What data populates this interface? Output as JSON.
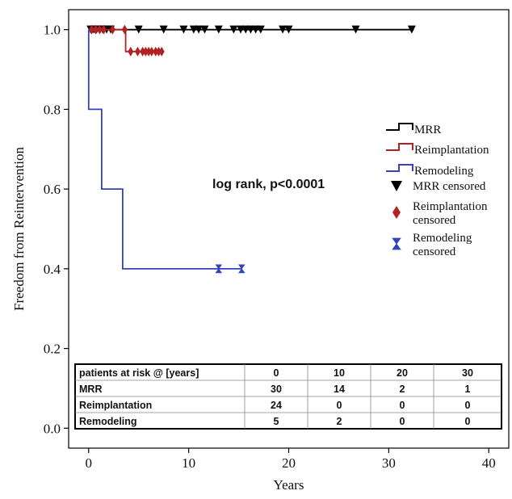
{
  "chart_data": {
    "type": "line",
    "subtype": "kaplan-meier-step",
    "title": "",
    "xlabel": "Years",
    "ylabel": "Freedom from Reintervention",
    "xlim": [
      -2,
      42
    ],
    "ylim": [
      -0.05,
      1.05
    ],
    "x_ticks": [
      0,
      10,
      20,
      30,
      40
    ],
    "y_ticks": [
      0.0,
      0.2,
      0.4,
      0.6,
      0.8,
      1.0
    ],
    "x_tick_labels": [
      "0",
      "10",
      "20",
      "30",
      "40"
    ],
    "y_tick_labels": [
      "0.0",
      "0.2",
      "0.4",
      "0.6",
      "0.8",
      "1.0"
    ],
    "grid": false,
    "legend_position": "right",
    "annotation": "log rank, p<0.0001",
    "series": [
      {
        "name": "MRR",
        "color": "#000000",
        "censor_marker": "triangle-down",
        "steps": [
          [
            0,
            1.0
          ],
          [
            32.5,
            1.0
          ]
        ],
        "censored": [
          [
            0.2,
            1.0
          ],
          [
            0.5,
            1.0
          ],
          [
            0.8,
            1.0
          ],
          [
            1.1,
            1.0
          ],
          [
            1.4,
            1.0
          ],
          [
            1.8,
            1.0
          ],
          [
            2.2,
            1.0
          ],
          [
            5.0,
            1.0
          ],
          [
            7.5,
            1.0
          ],
          [
            9.5,
            1.0
          ],
          [
            10.5,
            1.0
          ],
          [
            11.0,
            1.0
          ],
          [
            11.6,
            1.0
          ],
          [
            13.0,
            1.0
          ],
          [
            14.5,
            1.0
          ],
          [
            15.2,
            1.0
          ],
          [
            15.7,
            1.0
          ],
          [
            16.2,
            1.0
          ],
          [
            16.7,
            1.0
          ],
          [
            17.2,
            1.0
          ],
          [
            19.4,
            1.0
          ],
          [
            20.0,
            1.0
          ],
          [
            26.7,
            1.0
          ],
          [
            32.3,
            1.0
          ]
        ]
      },
      {
        "name": "Reimplantation",
        "color": "#b22222",
        "censor_marker": "diamond",
        "steps": [
          [
            0,
            1.0
          ],
          [
            3.7,
            1.0
          ],
          [
            3.7,
            0.945
          ],
          [
            7.4,
            0.945
          ]
        ],
        "censored": [
          [
            0.3,
            1.0
          ],
          [
            0.7,
            1.0
          ],
          [
            1.1,
            1.0
          ],
          [
            1.5,
            1.0
          ],
          [
            2.4,
            1.0
          ],
          [
            3.6,
            1.0
          ],
          [
            4.2,
            0.945
          ],
          [
            4.9,
            0.945
          ],
          [
            5.4,
            0.945
          ],
          [
            5.7,
            0.945
          ],
          [
            6.0,
            0.945
          ],
          [
            6.3,
            0.945
          ],
          [
            6.7,
            0.945
          ],
          [
            7.0,
            0.945
          ],
          [
            7.3,
            0.945
          ]
        ]
      },
      {
        "name": "Remodeling",
        "color": "#3344bb",
        "censor_marker": "hourglass",
        "steps": [
          [
            0,
            1.0
          ],
          [
            0,
            0.8
          ],
          [
            1.3,
            0.8
          ],
          [
            1.3,
            0.6
          ],
          [
            3.4,
            0.6
          ],
          [
            3.4,
            0.4
          ],
          [
            15.3,
            0.4
          ]
        ],
        "censored": [
          [
            13.0,
            0.4
          ],
          [
            15.3,
            0.4
          ]
        ]
      }
    ]
  },
  "legend": {
    "items": [
      {
        "kind": "line",
        "label": "MRR",
        "color": "#000000"
      },
      {
        "kind": "line",
        "label": "Reimplantation",
        "color": "#b22222"
      },
      {
        "kind": "line",
        "label": "Remodeling",
        "color": "#3344bb"
      },
      {
        "kind": "marker",
        "label": "MRR censored",
        "color": "#000000",
        "marker": "triangle-down"
      },
      {
        "kind": "marker",
        "label": "Reimplantation censored",
        "label_lines": [
          "Reimplantation",
          "censored"
        ],
        "color": "#b22222",
        "marker": "diamond"
      },
      {
        "kind": "marker",
        "label": "Remodeling censored",
        "label_lines": [
          "Remodeling",
          "censored"
        ],
        "color": "#3344bb",
        "marker": "hourglass"
      }
    ]
  },
  "risk_table": {
    "header": [
      "patients at risk @ [years]",
      "0",
      "10",
      "20",
      "30"
    ],
    "rows": [
      [
        "MRR",
        "30",
        "14",
        "2",
        "1"
      ],
      [
        "Reimplantation",
        "24",
        "0",
        "0",
        "0"
      ],
      [
        "Remodeling",
        "5",
        "2",
        "0",
        "0"
      ]
    ]
  }
}
